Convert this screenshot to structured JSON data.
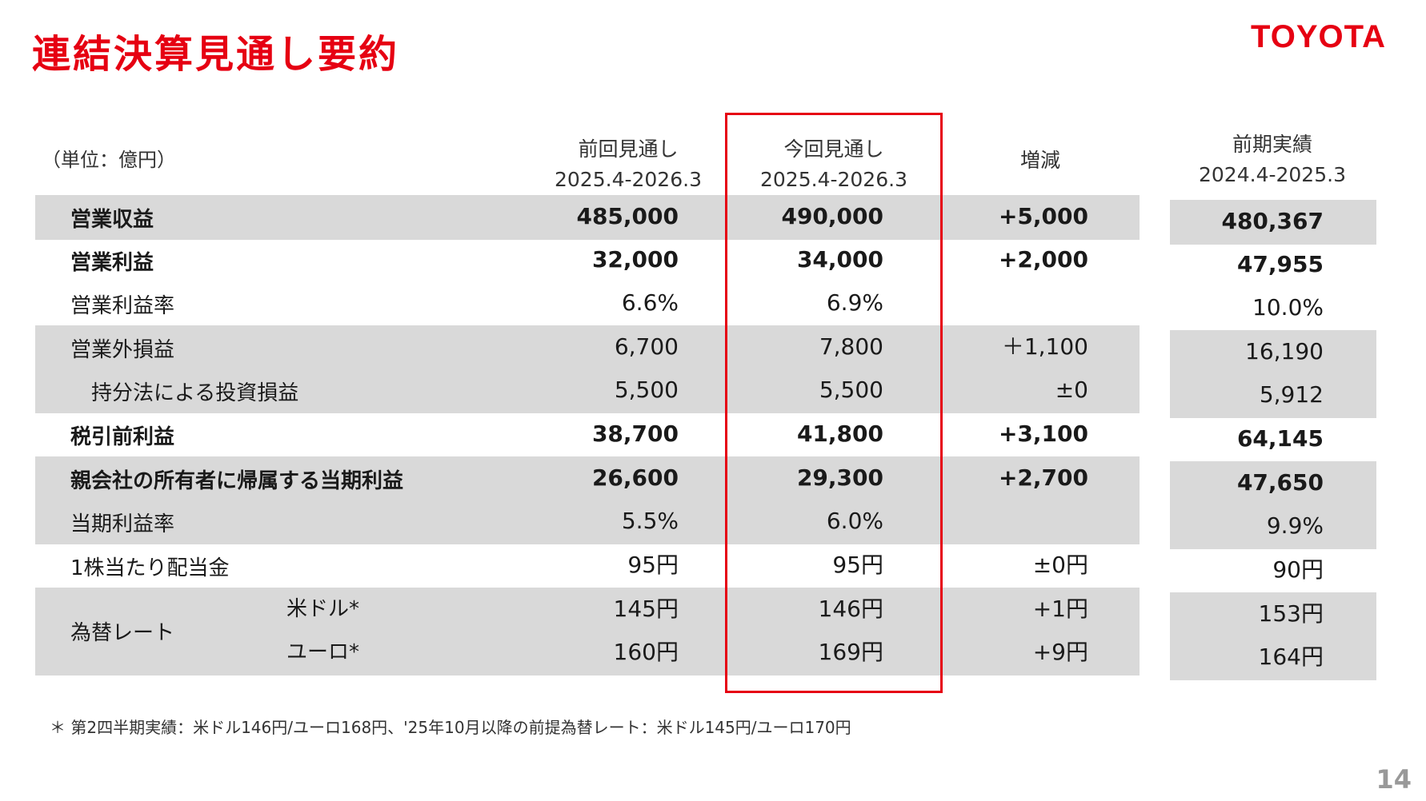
{
  "header": {
    "title": "連結決算見通し要約",
    "logo_text": "TOYOTA"
  },
  "table": {
    "unit": "（単位：億円）",
    "columns": {
      "prev": {
        "line1": "前回見通し",
        "line2": "2025.4-2026.3"
      },
      "curr": {
        "line1": "今回見通し",
        "line2": "2025.4-2026.3"
      },
      "diff": {
        "line1": "増減"
      },
      "prior": {
        "line1": "前期実績",
        "line2": "2024.4-2025.3"
      }
    },
    "rows": [
      {
        "label": "営業収益",
        "prev": "485,000",
        "curr": "490,000",
        "diff": "+5,000",
        "prior": "480,367"
      },
      {
        "label": "営業利益",
        "prev": "32,000",
        "curr": "34,000",
        "diff": "+2,000",
        "prior": "47,955"
      },
      {
        "label": "営業利益率",
        "prev": "6.6%",
        "curr": "6.9%",
        "diff": "",
        "prior": "10.0%"
      },
      {
        "label": "営業外損益",
        "prev": "6,700",
        "curr": "7,800",
        "diff": "＋1,100",
        "prior": "16,190"
      },
      {
        "label": "持分法による投資損益",
        "prev": "5,500",
        "curr": "5,500",
        "diff": "±0",
        "prior": "5,912"
      },
      {
        "label": "税引前利益",
        "prev": "38,700",
        "curr": "41,800",
        "diff": "+3,100",
        "prior": "64,145"
      },
      {
        "label": "親会社の所有者に帰属する当期利益",
        "prev": "26,600",
        "curr": "29,300",
        "diff": "+2,700",
        "prior": "47,650"
      },
      {
        "label": "当期利益率",
        "prev": "5.5%",
        "curr": "6.0%",
        "diff": "",
        "prior": "9.9%"
      },
      {
        "label": "1株当たり配当金",
        "prev": "95円",
        "curr": "95円",
        "diff": "±0円",
        "prior": "90円"
      },
      {
        "label": "米ドル*",
        "prev": "145円",
        "curr": "146円",
        "diff": "+1円",
        "prior": "153円"
      },
      {
        "label": "ユーロ*",
        "prev": "160円",
        "curr": "169円",
        "diff": "+9円",
        "prior": "164円"
      }
    ],
    "fx_group_label": "為替レート"
  },
  "footnote": "＊ 第2四半期実績：米ドル146円/ユーロ168円、'25年10月以降の前提為替レート：米ドル145円/ユーロ170円",
  "page_number": "14",
  "colors": {
    "brand_red": "#e60012",
    "band_gray": "#d9d9d9"
  }
}
